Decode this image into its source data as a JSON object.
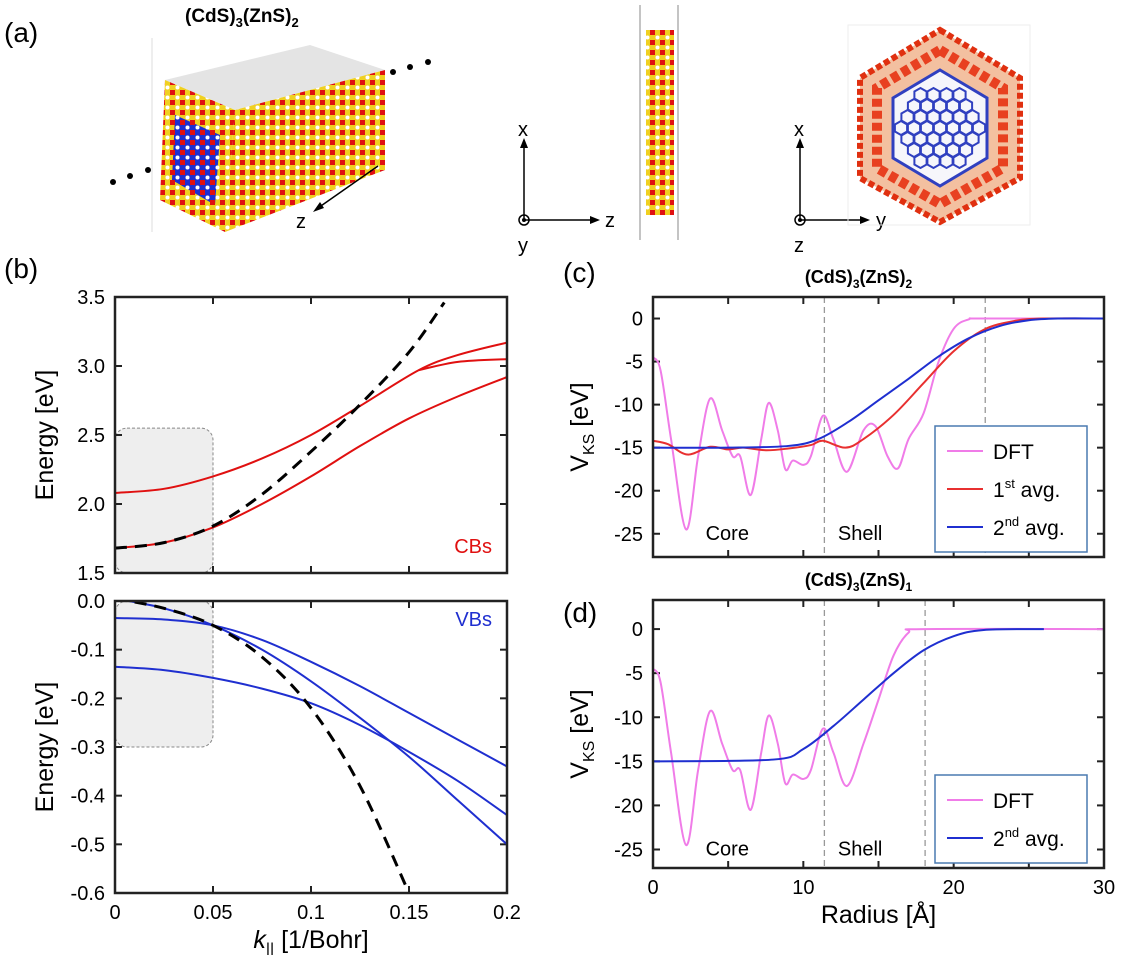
{
  "panel_labels": {
    "a": "(a)",
    "b": "(b)",
    "c": "(c)",
    "d": "(d)"
  },
  "structure": {
    "title": "(CdS)3(ZnS)2",
    "axis_z": "z",
    "side_view_axes": {
      "up": "x",
      "right": "z",
      "out": "y"
    },
    "top_view_axes": {
      "up": "x",
      "right": "y",
      "out": "z"
    },
    "colors": {
      "core": "#1f2fd0",
      "shell": "#e01010",
      "sulfur": "#f0d020",
      "hydrogen": "#e8e8e8"
    }
  },
  "chart_data": [
    {
      "id": "cb",
      "type": "line",
      "ylabel": "Energy [eV]",
      "xlim": [
        0,
        0.2
      ],
      "ylim": [
        1.5,
        3.5
      ],
      "xticks": [
        0,
        0.05,
        0.1,
        0.15,
        0.2
      ],
      "yticks": [
        1.5,
        2.0,
        2.5,
        3.0,
        3.5
      ],
      "ytick_labels": [
        "1.5",
        "2.0",
        "2.5",
        "3.0",
        "3.5"
      ],
      "annotation": "CBs",
      "annotation_color": "#e01010",
      "shaded_region": {
        "x": [
          0,
          0.05
        ],
        "y": [
          1.5,
          2.55
        ]
      },
      "series": [
        {
          "color": "#e01010",
          "style": "solid",
          "points": [
            [
              0,
              2.08
            ],
            [
              0.025,
              2.11
            ],
            [
              0.05,
              2.2
            ],
            [
              0.075,
              2.33
            ],
            [
              0.1,
              2.5
            ],
            [
              0.125,
              2.71
            ],
            [
              0.155,
              2.97
            ],
            [
              0.175,
              3.08
            ],
            [
              0.2,
              3.17
            ]
          ]
        },
        {
          "color": "#e01010",
          "style": "solid",
          "points": [
            [
              0.155,
              2.97
            ],
            [
              0.175,
              3.03
            ],
            [
              0.2,
              3.05
            ]
          ]
        },
        {
          "color": "#e01010",
          "style": "solid",
          "points": [
            [
              0,
              1.68
            ],
            [
              0.025,
              1.72
            ],
            [
              0.05,
              1.83
            ],
            [
              0.075,
              2.0
            ],
            [
              0.1,
              2.2
            ],
            [
              0.125,
              2.42
            ],
            [
              0.15,
              2.62
            ],
            [
              0.175,
              2.78
            ],
            [
              0.2,
              2.92
            ]
          ]
        },
        {
          "color": "#000000",
          "style": "dashed",
          "points": [
            [
              0,
              1.68
            ],
            [
              0.025,
              1.72
            ],
            [
              0.05,
              1.84
            ],
            [
              0.075,
              2.07
            ],
            [
              0.1,
              2.38
            ],
            [
              0.125,
              2.72
            ],
            [
              0.15,
              3.1
            ],
            [
              0.168,
              3.46
            ]
          ]
        }
      ]
    },
    {
      "id": "vb",
      "type": "line",
      "xlabel": "k|| [1/Bohr]",
      "ylabel": "Energy [eV]",
      "xlim": [
        0,
        0.2
      ],
      "ylim": [
        -0.6,
        0.0
      ],
      "xticks": [
        0,
        0.05,
        0.1,
        0.15,
        0.2
      ],
      "xtick_labels": [
        "0",
        "0.05",
        "0.1",
        "0.15",
        "0.2"
      ],
      "yticks": [
        0.0,
        -0.1,
        -0.2,
        -0.3,
        -0.4,
        -0.5,
        -0.6
      ],
      "ytick_labels": [
        "0.0",
        "-0.1",
        "-0.2",
        "-0.3",
        "-0.4",
        "-0.5",
        "-0.6"
      ],
      "annotation": "VBs",
      "annotation_color": "#1f2fd0",
      "shaded_region": {
        "x": [
          0,
          0.05
        ],
        "y": [
          -0.3,
          0.0
        ]
      },
      "series": [
        {
          "color": "#1f2fd0",
          "style": "solid",
          "points": [
            [
              0,
              -0.035
            ],
            [
              0.025,
              -0.038
            ],
            [
              0.05,
              -0.05
            ],
            [
              0.075,
              -0.08
            ],
            [
              0.1,
              -0.125
            ],
            [
              0.125,
              -0.175
            ],
            [
              0.15,
              -0.23
            ],
            [
              0.175,
              -0.285
            ],
            [
              0.2,
              -0.34
            ]
          ]
        },
        {
          "color": "#1f2fd0",
          "style": "solid",
          "points": [
            [
              0,
              0.005
            ],
            [
              0.025,
              -0.015
            ],
            [
              0.05,
              -0.05
            ],
            [
              0.075,
              -0.1
            ],
            [
              0.1,
              -0.165
            ],
            [
              0.125,
              -0.24
            ],
            [
              0.15,
              -0.32
            ],
            [
              0.175,
              -0.41
            ],
            [
              0.2,
              -0.5
            ]
          ]
        },
        {
          "color": "#1f2fd0",
          "style": "solid",
          "points": [
            [
              0,
              -0.135
            ],
            [
              0.025,
              -0.142
            ],
            [
              0.05,
              -0.158
            ],
            [
              0.075,
              -0.18
            ],
            [
              0.1,
              -0.21
            ],
            [
              0.125,
              -0.255
            ],
            [
              0.15,
              -0.31
            ],
            [
              0.175,
              -0.37
            ],
            [
              0.2,
              -0.44
            ]
          ]
        },
        {
          "color": "#000000",
          "style": "dashed",
          "points": [
            [
              0,
              0.005
            ],
            [
              0.025,
              -0.015
            ],
            [
              0.05,
              -0.05
            ],
            [
              0.075,
              -0.115
            ],
            [
              0.1,
              -0.22
            ],
            [
              0.125,
              -0.38
            ],
            [
              0.15,
              -0.6
            ]
          ]
        }
      ]
    },
    {
      "id": "c",
      "type": "line",
      "title": "(CdS)3(ZnS)2",
      "ylabel": "VKS [eV]",
      "xlim": [
        0,
        30
      ],
      "ylim": [
        -27.7,
        2.5
      ],
      "xticks": [
        0,
        5,
        10,
        15,
        20,
        25,
        30
      ],
      "yticks": [
        0,
        -5,
        -10,
        -15,
        -20,
        -25
      ],
      "ytick_labels": [
        "0",
        "-5",
        "-10",
        "-15",
        "-20",
        "-25"
      ],
      "vlines": [
        11.4,
        22.1
      ],
      "region_labels": [
        {
          "text": "Core",
          "x": 3.5,
          "y": -25
        },
        {
          "text": "Shell",
          "x": 12.3,
          "y": -25
        }
      ],
      "legend_placement": "lower-right",
      "series": [
        {
          "name": "DFT",
          "color": "#f07ce8",
          "points": [
            [
              0,
              -4.5
            ],
            [
              0.5,
              -6
            ],
            [
              1.2,
              -14
            ],
            [
              2.2,
              -24.5
            ],
            [
              3,
              -16
            ],
            [
              3.8,
              -9.3
            ],
            [
              4.6,
              -13
            ],
            [
              5.3,
              -16
            ],
            [
              5.8,
              -16
            ],
            [
              6.5,
              -20.5
            ],
            [
              7.2,
              -14
            ],
            [
              7.7,
              -9.8
            ],
            [
              8.3,
              -13
            ],
            [
              8.8,
              -17.5
            ],
            [
              9.3,
              -16.5
            ],
            [
              10,
              -17
            ],
            [
              10.5,
              -16
            ],
            [
              11.3,
              -11.3
            ],
            [
              12,
              -14
            ],
            [
              12.9,
              -17.8
            ],
            [
              14,
              -13
            ],
            [
              14.8,
              -12.5
            ],
            [
              15.6,
              -16
            ],
            [
              16.3,
              -17.4
            ],
            [
              17,
              -14
            ],
            [
              18,
              -11
            ],
            [
              19,
              -5
            ],
            [
              20,
              -1.2
            ],
            [
              21,
              -0.1
            ],
            [
              22,
              0
            ],
            [
              30,
              0
            ]
          ]
        },
        {
          "name": "1st avg.",
          "color": "#e83030",
          "points": [
            [
              0,
              -14.2
            ],
            [
              1,
              -14.6
            ],
            [
              2.3,
              -15.8
            ],
            [
              3.8,
              -14.9
            ],
            [
              5,
              -15.2
            ],
            [
              6,
              -15
            ],
            [
              7.5,
              -15.3
            ],
            [
              9,
              -15.1
            ],
            [
              10.5,
              -14.7
            ],
            [
              11.3,
              -14.2
            ],
            [
              12.8,
              -15
            ],
            [
              14,
              -14
            ],
            [
              16,
              -11.2
            ],
            [
              18,
              -7.5
            ],
            [
              20,
              -3.8
            ],
            [
              22,
              -1.3
            ],
            [
              24,
              -0.3
            ],
            [
              26,
              0
            ],
            [
              30,
              0
            ]
          ]
        },
        {
          "name": "2nd avg.",
          "color": "#1f2fd0",
          "points": [
            [
              0,
              -15
            ],
            [
              5,
              -15
            ],
            [
              9,
              -14.8
            ],
            [
              11,
              -14
            ],
            [
              13,
              -12
            ],
            [
              15,
              -9.5
            ],
            [
              17,
              -7
            ],
            [
              19,
              -4.4
            ],
            [
              21,
              -2.3
            ],
            [
              23,
              -0.9
            ],
            [
              25,
              -0.2
            ],
            [
              27,
              0
            ],
            [
              30,
              0
            ]
          ]
        }
      ]
    },
    {
      "id": "d",
      "type": "line",
      "title": "(CdS)3(ZnS)1",
      "xlabel": "Radius [Å]",
      "ylabel": "VKS [eV]",
      "xlim": [
        0,
        30
      ],
      "ylim": [
        -27.1,
        3.3
      ],
      "xticks": [
        0,
        5,
        10,
        15,
        20,
        25,
        30
      ],
      "xtick_labels": [
        "0",
        "",
        "10",
        "",
        "20",
        "",
        "30"
      ],
      "yticks": [
        0,
        -5,
        -10,
        -15,
        -20,
        -25
      ],
      "ytick_labels": [
        "0",
        "-5",
        "-10",
        "-15",
        "-20",
        "-25"
      ],
      "vlines": [
        11.4,
        18.1
      ],
      "region_labels": [
        {
          "text": "Core",
          "x": 3.5,
          "y": -25
        },
        {
          "text": "Shell",
          "x": 12.3,
          "y": -25
        }
      ],
      "legend_placement": "lower-right",
      "series": [
        {
          "name": "DFT",
          "color": "#f07ce8",
          "points": [
            [
              0,
              -4.5
            ],
            [
              0.5,
              -6
            ],
            [
              1.2,
              -14
            ],
            [
              2.2,
              -24.5
            ],
            [
              3,
              -16
            ],
            [
              3.8,
              -9.3
            ],
            [
              4.6,
              -13
            ],
            [
              5.3,
              -16
            ],
            [
              5.8,
              -16
            ],
            [
              6.5,
              -20.5
            ],
            [
              7.2,
              -14
            ],
            [
              7.7,
              -9.8
            ],
            [
              8.3,
              -13
            ],
            [
              8.8,
              -17.5
            ],
            [
              9.3,
              -16.5
            ],
            [
              10,
              -17
            ],
            [
              10.5,
              -16
            ],
            [
              11.3,
              -11.3
            ],
            [
              12,
              -14
            ],
            [
              12.9,
              -17.8
            ],
            [
              14,
              -13
            ],
            [
              15,
              -8
            ],
            [
              16,
              -3
            ],
            [
              17,
              -0.4
            ],
            [
              18,
              0
            ],
            [
              30,
              0
            ]
          ]
        },
        {
          "name": "2nd avg.",
          "color": "#1f2fd0",
          "points": [
            [
              0,
              -15
            ],
            [
              8,
              -14.8
            ],
            [
              10,
              -13.6
            ],
            [
              12,
              -11
            ],
            [
              14,
              -8
            ],
            [
              16,
              -5
            ],
            [
              18,
              -2.4
            ],
            [
              20,
              -0.8
            ],
            [
              22,
              -0.1
            ],
            [
              26,
              0
            ]
          ]
        }
      ]
    }
  ]
}
